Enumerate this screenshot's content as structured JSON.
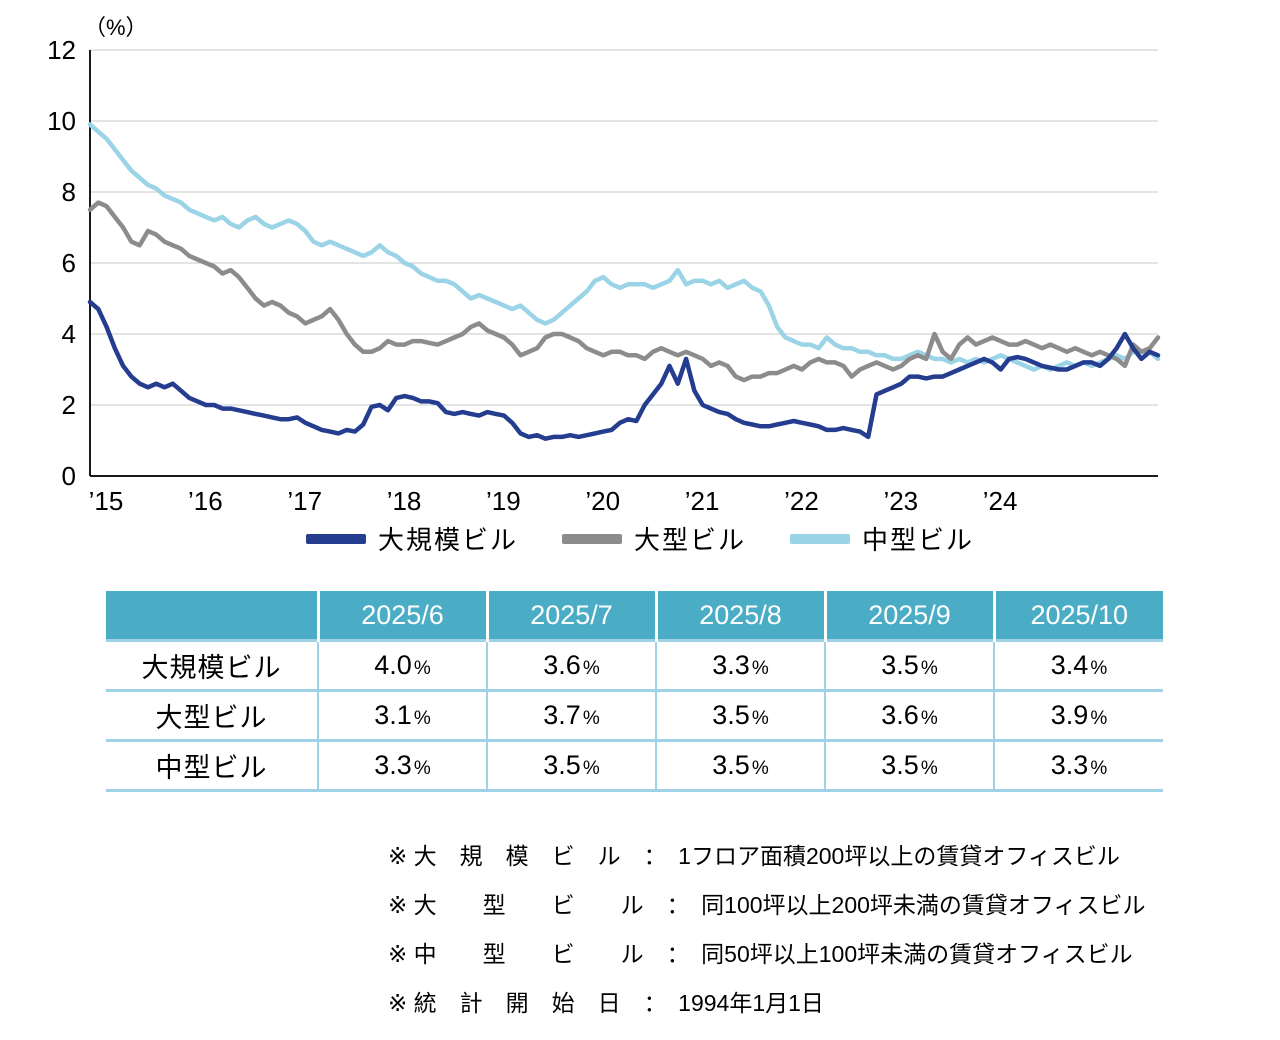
{
  "chart_data": {
    "type": "line",
    "title": "",
    "ylabel": "（%）",
    "xlabel": "",
    "ylim": [
      0,
      12
    ],
    "y_ticks": [
      0,
      2,
      4,
      6,
      8,
      10,
      12
    ],
    "x_ticks": [
      "’15",
      "’16",
      "’17",
      "’18",
      "’19",
      "’20",
      "’21",
      "’22",
      "’23",
      "’24"
    ],
    "x_start": "2015-01",
    "x_end": "2025-10",
    "grid": "horizontal",
    "legend_position": "bottom",
    "axis_color": "#1a1a1a",
    "grid_color": "#c8c8c8",
    "series": [
      {
        "name": "大規模ビル",
        "color": "#243D8F",
        "values": [
          4.9,
          4.7,
          4.2,
          3.6,
          3.1,
          2.8,
          2.6,
          2.5,
          2.6,
          2.5,
          2.6,
          2.4,
          2.2,
          2.1,
          2.0,
          2.0,
          1.9,
          1.9,
          1.85,
          1.8,
          1.75,
          1.7,
          1.65,
          1.6,
          1.6,
          1.65,
          1.5,
          1.4,
          1.3,
          1.25,
          1.2,
          1.3,
          1.25,
          1.45,
          1.95,
          2.0,
          1.85,
          2.2,
          2.25,
          2.2,
          2.1,
          2.1,
          2.05,
          1.8,
          1.75,
          1.8,
          1.75,
          1.7,
          1.8,
          1.75,
          1.7,
          1.5,
          1.2,
          1.1,
          1.15,
          1.05,
          1.1,
          1.1,
          1.15,
          1.1,
          1.15,
          1.2,
          1.25,
          1.3,
          1.5,
          1.6,
          1.55,
          2.0,
          2.3,
          2.6,
          3.1,
          2.6,
          3.3,
          2.4,
          2.0,
          1.9,
          1.8,
          1.75,
          1.6,
          1.5,
          1.45,
          1.4,
          1.4,
          1.45,
          1.5,
          1.55,
          1.5,
          1.45,
          1.4,
          1.3,
          1.3,
          1.35,
          1.3,
          1.25,
          1.1,
          2.3,
          2.4,
          2.5,
          2.6,
          2.8,
          2.8,
          2.75,
          2.8,
          2.8,
          2.9,
          3.0,
          3.1,
          3.2,
          3.3,
          3.2,
          3.0,
          3.3,
          3.35,
          3.3,
          3.2,
          3.1,
          3.05,
          3.0,
          3.0,
          3.1,
          3.2,
          3.2,
          3.1,
          3.3,
          3.6,
          4.0,
          3.6,
          3.3,
          3.5,
          3.4
        ]
      },
      {
        "name": "大型ビル",
        "color": "#8C8C8C",
        "values": [
          7.5,
          7.7,
          7.6,
          7.3,
          7.0,
          6.6,
          6.5,
          6.9,
          6.8,
          6.6,
          6.5,
          6.4,
          6.2,
          6.1,
          6.0,
          5.9,
          5.7,
          5.8,
          5.6,
          5.3,
          5.0,
          4.8,
          4.9,
          4.8,
          4.6,
          4.5,
          4.3,
          4.4,
          4.5,
          4.7,
          4.4,
          4.0,
          3.7,
          3.5,
          3.5,
          3.6,
          3.8,
          3.7,
          3.7,
          3.8,
          3.8,
          3.75,
          3.7,
          3.8,
          3.9,
          4.0,
          4.2,
          4.3,
          4.1,
          4.0,
          3.9,
          3.7,
          3.4,
          3.5,
          3.6,
          3.9,
          4.0,
          4.0,
          3.9,
          3.8,
          3.6,
          3.5,
          3.4,
          3.5,
          3.5,
          3.4,
          3.4,
          3.3,
          3.5,
          3.6,
          3.5,
          3.4,
          3.5,
          3.4,
          3.3,
          3.1,
          3.2,
          3.1,
          2.8,
          2.7,
          2.8,
          2.8,
          2.9,
          2.9,
          3.0,
          3.1,
          3.0,
          3.2,
          3.3,
          3.2,
          3.2,
          3.1,
          2.8,
          3.0,
          3.1,
          3.2,
          3.1,
          3.0,
          3.1,
          3.3,
          3.4,
          3.3,
          4.0,
          3.5,
          3.3,
          3.7,
          3.9,
          3.7,
          3.8,
          3.9,
          3.8,
          3.7,
          3.7,
          3.8,
          3.7,
          3.6,
          3.7,
          3.6,
          3.5,
          3.6,
          3.5,
          3.4,
          3.5,
          3.4,
          3.3,
          3.1,
          3.7,
          3.5,
          3.6,
          3.9
        ]
      },
      {
        "name": "中型ビル",
        "color": "#9AD4E6",
        "values": [
          9.9,
          9.7,
          9.5,
          9.2,
          8.9,
          8.6,
          8.4,
          8.2,
          8.1,
          7.9,
          7.8,
          7.7,
          7.5,
          7.4,
          7.3,
          7.2,
          7.3,
          7.1,
          7.0,
          7.2,
          7.3,
          7.1,
          7.0,
          7.1,
          7.2,
          7.1,
          6.9,
          6.6,
          6.5,
          6.6,
          6.5,
          6.4,
          6.3,
          6.2,
          6.3,
          6.5,
          6.3,
          6.2,
          6.0,
          5.9,
          5.7,
          5.6,
          5.5,
          5.5,
          5.4,
          5.2,
          5.0,
          5.1,
          5.0,
          4.9,
          4.8,
          4.7,
          4.8,
          4.6,
          4.4,
          4.3,
          4.4,
          4.6,
          4.8,
          5.0,
          5.2,
          5.5,
          5.6,
          5.4,
          5.3,
          5.4,
          5.4,
          5.4,
          5.3,
          5.4,
          5.5,
          5.8,
          5.4,
          5.5,
          5.5,
          5.4,
          5.5,
          5.3,
          5.4,
          5.5,
          5.3,
          5.2,
          4.8,
          4.2,
          3.9,
          3.8,
          3.7,
          3.7,
          3.6,
          3.9,
          3.7,
          3.6,
          3.6,
          3.5,
          3.5,
          3.4,
          3.4,
          3.3,
          3.3,
          3.4,
          3.5,
          3.4,
          3.3,
          3.3,
          3.2,
          3.3,
          3.2,
          3.3,
          3.2,
          3.3,
          3.4,
          3.3,
          3.2,
          3.1,
          3.0,
          3.1,
          3.0,
          3.1,
          3.2,
          3.1,
          3.2,
          3.1,
          3.2,
          3.3,
          3.4,
          3.3,
          3.5,
          3.5,
          3.5,
          3.3
        ]
      }
    ]
  },
  "table": {
    "header_bg": "#4BACC6",
    "unit": "%",
    "columns": [
      "",
      "2025/6",
      "2025/7",
      "2025/8",
      "2025/9",
      "2025/10"
    ],
    "rows": [
      {
        "label": "大規模ビル",
        "values": [
          "4.0",
          "3.6",
          "3.3",
          "3.5",
          "3.4"
        ]
      },
      {
        "label": "大型ビル",
        "values": [
          "3.1",
          "3.7",
          "3.5",
          "3.6",
          "3.9"
        ]
      },
      {
        "label": "中型ビル",
        "values": [
          "3.3",
          "3.5",
          "3.5",
          "3.5",
          "3.3"
        ]
      }
    ]
  },
  "notes": [
    "※ 大　規　模　ビ　ル　：　1フロア面積200坪以上の賃貸オフィスビル",
    "※ 大　　型　　ビ　　ル　：　同100坪以上200坪未満の賃貸オフィスビル",
    "※ 中　　型　　ビ　　ル　：　同50坪以上100坪未満の賃貸オフィスビル",
    "※ 統　計　開　始　日　：　1994年1月1日"
  ]
}
